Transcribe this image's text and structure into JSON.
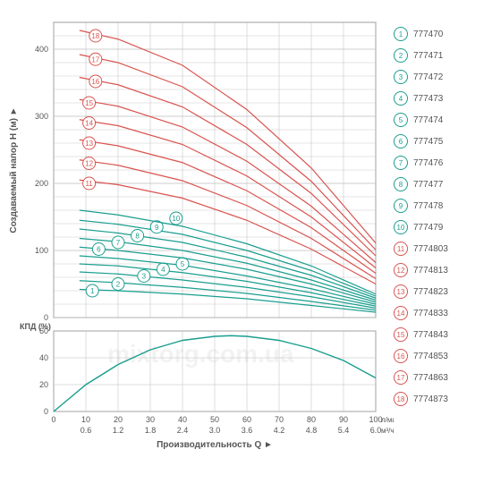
{
  "colors": {
    "grid": "#bdbdbd",
    "axis": "#888888",
    "teal": "#1a9e8f",
    "red": "#d9534f",
    "text": "#555555",
    "bg": "#ffffff"
  },
  "watermark": "mixtorg.com.ua",
  "main_chart": {
    "type": "line",
    "title_y": "Создаваемый напор H (м)  ►",
    "xrange": [
      0,
      100
    ],
    "yrange": [
      0,
      440
    ],
    "xticks": [
      0,
      10,
      20,
      30,
      40,
      50,
      60,
      70,
      80,
      90,
      100
    ],
    "yticks": [
      0,
      100,
      200,
      300,
      400
    ],
    "yticks_minor_step": 20,
    "series": [
      {
        "id": "1",
        "color": "teal",
        "badge_x": 12,
        "badge_y": 40,
        "pts": [
          [
            8,
            42
          ],
          [
            20,
            40
          ],
          [
            40,
            35
          ],
          [
            60,
            28
          ],
          [
            80,
            18
          ],
          [
            100,
            8
          ]
        ]
      },
      {
        "id": "2",
        "color": "teal",
        "badge_x": 20,
        "badge_y": 50,
        "pts": [
          [
            8,
            55
          ],
          [
            20,
            52
          ],
          [
            40,
            45
          ],
          [
            60,
            36
          ],
          [
            80,
            24
          ],
          [
            100,
            11
          ]
        ]
      },
      {
        "id": "3",
        "color": "teal",
        "badge_x": 28,
        "badge_y": 62,
        "pts": [
          [
            8,
            68
          ],
          [
            20,
            65
          ],
          [
            40,
            56
          ],
          [
            60,
            45
          ],
          [
            80,
            31
          ],
          [
            100,
            14
          ]
        ]
      },
      {
        "id": "4",
        "color": "teal",
        "badge_x": 34,
        "badge_y": 72,
        "pts": [
          [
            8,
            80
          ],
          [
            20,
            77
          ],
          [
            40,
            67
          ],
          [
            60,
            54
          ],
          [
            80,
            37
          ],
          [
            100,
            17
          ]
        ]
      },
      {
        "id": "5",
        "color": "teal",
        "badge_x": 40,
        "badge_y": 80,
        "pts": [
          [
            8,
            92
          ],
          [
            20,
            88
          ],
          [
            40,
            78
          ],
          [
            60,
            62
          ],
          [
            80,
            43
          ],
          [
            100,
            20
          ]
        ]
      },
      {
        "id": "6",
        "color": "teal",
        "badge_x": 14,
        "badge_y": 102,
        "pts": [
          [
            8,
            105
          ],
          [
            20,
            100
          ],
          [
            40,
            89
          ],
          [
            60,
            72
          ],
          [
            80,
            50
          ],
          [
            100,
            23
          ]
        ]
      },
      {
        "id": "7",
        "color": "teal",
        "badge_x": 20,
        "badge_y": 112,
        "pts": [
          [
            8,
            118
          ],
          [
            20,
            113
          ],
          [
            40,
            100
          ],
          [
            60,
            81
          ],
          [
            80,
            56
          ],
          [
            100,
            26
          ]
        ]
      },
      {
        "id": "8",
        "color": "teal",
        "badge_x": 26,
        "badge_y": 122,
        "pts": [
          [
            8,
            132
          ],
          [
            20,
            126
          ],
          [
            40,
            112
          ],
          [
            60,
            90
          ],
          [
            80,
            63
          ],
          [
            100,
            29
          ]
        ]
      },
      {
        "id": "9",
        "color": "teal",
        "badge_x": 32,
        "badge_y": 135,
        "pts": [
          [
            8,
            145
          ],
          [
            20,
            139
          ],
          [
            40,
            124
          ],
          [
            60,
            100
          ],
          [
            80,
            70
          ],
          [
            100,
            32
          ]
        ]
      },
      {
        "id": "10",
        "color": "teal",
        "badge_x": 38,
        "badge_y": 148,
        "pts": [
          [
            8,
            160
          ],
          [
            20,
            153
          ],
          [
            40,
            136
          ],
          [
            60,
            110
          ],
          [
            80,
            77
          ],
          [
            100,
            35
          ]
        ]
      },
      {
        "id": "11",
        "color": "red",
        "badge_x": 11,
        "badge_y": 200,
        "pts": [
          [
            8,
            205
          ],
          [
            20,
            198
          ],
          [
            40,
            178
          ],
          [
            60,
            145
          ],
          [
            80,
            102
          ],
          [
            100,
            50
          ]
        ]
      },
      {
        "id": "12",
        "color": "red",
        "badge_x": 11,
        "badge_y": 230,
        "pts": [
          [
            8,
            235
          ],
          [
            20,
            227
          ],
          [
            40,
            204
          ],
          [
            60,
            167
          ],
          [
            80,
            118
          ],
          [
            100,
            58
          ]
        ]
      },
      {
        "id": "13",
        "color": "red",
        "badge_x": 11,
        "badge_y": 260,
        "pts": [
          [
            8,
            265
          ],
          [
            20,
            256
          ],
          [
            40,
            231
          ],
          [
            60,
            189
          ],
          [
            80,
            134
          ],
          [
            100,
            66
          ]
        ]
      },
      {
        "id": "14",
        "color": "red",
        "badge_x": 11,
        "badge_y": 290,
        "pts": [
          [
            8,
            295
          ],
          [
            20,
            286
          ],
          [
            40,
            258
          ],
          [
            60,
            211
          ],
          [
            80,
            150
          ],
          [
            100,
            74
          ]
        ]
      },
      {
        "id": "15",
        "color": "red",
        "badge_x": 11,
        "badge_y": 320,
        "pts": [
          [
            8,
            325
          ],
          [
            20,
            315
          ],
          [
            40,
            284
          ],
          [
            60,
            233
          ],
          [
            80,
            166
          ],
          [
            100,
            82
          ]
        ]
      },
      {
        "id": "16",
        "color": "red",
        "badge_x": 13,
        "badge_y": 352,
        "pts": [
          [
            8,
            358
          ],
          [
            20,
            347
          ],
          [
            40,
            314
          ],
          [
            60,
            258
          ],
          [
            80,
            185
          ],
          [
            100,
            92
          ]
        ]
      },
      {
        "id": "17",
        "color": "red",
        "badge_x": 13,
        "badge_y": 385,
        "pts": [
          [
            8,
            392
          ],
          [
            20,
            380
          ],
          [
            40,
            344
          ],
          [
            60,
            283
          ],
          [
            80,
            203
          ],
          [
            100,
            101
          ]
        ]
      },
      {
        "id": "18",
        "color": "red",
        "badge_x": 13,
        "badge_y": 420,
        "pts": [
          [
            8,
            428
          ],
          [
            20,
            415
          ],
          [
            40,
            376
          ],
          [
            60,
            310
          ],
          [
            80,
            223
          ],
          [
            100,
            111
          ]
        ]
      }
    ]
  },
  "kpd_chart": {
    "type": "line",
    "title_y": "КПД (%)",
    "xrange": [
      0,
      100
    ],
    "yrange": [
      0,
      60
    ],
    "yticks": [
      0,
      20,
      40,
      60
    ],
    "curve": [
      [
        0,
        0
      ],
      [
        10,
        20
      ],
      [
        20,
        35
      ],
      [
        30,
        46
      ],
      [
        40,
        53
      ],
      [
        50,
        56
      ],
      [
        55,
        56.5
      ],
      [
        60,
        56
      ],
      [
        70,
        53
      ],
      [
        80,
        47
      ],
      [
        90,
        38
      ],
      [
        100,
        25
      ]
    ],
    "color": "teal"
  },
  "x_axis": {
    "title": "Производительность Q  ►",
    "top_label": "л/мин",
    "bottom_label": "м³/ч",
    "bottom_ticks": [
      "0.6",
      "1.2",
      "1.8",
      "2.4",
      "3.0",
      "3.6",
      "4.2",
      "4.8",
      "5.4",
      "6.0"
    ]
  },
  "legend": [
    {
      "id": "1",
      "color": "teal",
      "label": "777470"
    },
    {
      "id": "2",
      "color": "teal",
      "label": "777471"
    },
    {
      "id": "3",
      "color": "teal",
      "label": "777472"
    },
    {
      "id": "4",
      "color": "teal",
      "label": "777473"
    },
    {
      "id": "5",
      "color": "teal",
      "label": "777474"
    },
    {
      "id": "6",
      "color": "teal",
      "label": "777475"
    },
    {
      "id": "7",
      "color": "teal",
      "label": "777476"
    },
    {
      "id": "8",
      "color": "teal",
      "label": "777477"
    },
    {
      "id": "9",
      "color": "teal",
      "label": "777478"
    },
    {
      "id": "10",
      "color": "teal",
      "label": "777479"
    },
    {
      "id": "11",
      "color": "red",
      "label": "7774803"
    },
    {
      "id": "12",
      "color": "red",
      "label": "7774813"
    },
    {
      "id": "13",
      "color": "red",
      "label": "7774823"
    },
    {
      "id": "14",
      "color": "red",
      "label": "7774833"
    },
    {
      "id": "15",
      "color": "red",
      "label": "7774843"
    },
    {
      "id": "16",
      "color": "red",
      "label": "7774853"
    },
    {
      "id": "17",
      "color": "red",
      "label": "7774863"
    },
    {
      "id": "18",
      "color": "red",
      "label": "7774873"
    }
  ]
}
